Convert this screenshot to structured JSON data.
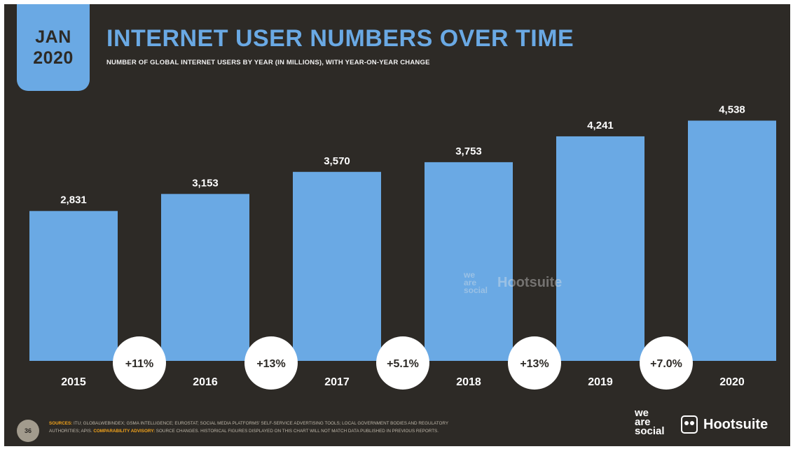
{
  "header": {
    "month": "JAN",
    "year": "2020",
    "title": "INTERNET USER NUMBERS OVER TIME",
    "subtitle": "NUMBER OF GLOBAL INTERNET USERS BY YEAR (IN MILLIONS), WITH YEAR-ON-YEAR CHANGE"
  },
  "chart_data": {
    "type": "bar",
    "categories": [
      "2015",
      "2016",
      "2017",
      "2018",
      "2019",
      "2020"
    ],
    "values": [
      2831,
      3153,
      3570,
      3753,
      4241,
      4538
    ],
    "value_labels": [
      "2,831",
      "3,153",
      "3,570",
      "3,753",
      "4,241",
      "4,538"
    ],
    "changes": [
      "+11%",
      "+13%",
      "+5.1%",
      "+13%",
      "+7.0%"
    ],
    "title": "INTERNET USER NUMBERS OVER TIME",
    "xlabel": "",
    "ylabel": "",
    "ylim": [
      0,
      5000
    ],
    "grid": false,
    "legend": "none",
    "colors": {
      "bar": "#6aa9e4",
      "background": "#2d2a26",
      "label": "#ffffff",
      "change_bubble": "#ffffff",
      "change_text": "#2d2a26"
    }
  },
  "watermark": {
    "brand_lines": [
      "we",
      "are",
      "social"
    ],
    "partner": "Hootsuite"
  },
  "footer": {
    "page_number": "36",
    "sources_label": "SOURCES:",
    "sources_text": "ITU; GLOBALWEBINDEX; GSMA INTELLIGENCE; EUROSTAT; SOCIAL MEDIA PLATFORMS' SELF-SERVICE ADVERTISING TOOLS; LOCAL GOVERNMENT BODIES AND REGULATORY",
    "sources_text_2": "AUTHORITIES; APIS.",
    "advisory_label": "COMPARABILITY ADVISORY:",
    "advisory_text": "SOURCE CHANGES. HISTORICAL FIGURES DISPLAYED ON THIS CHART WILL NOT MATCH DATA PUBLISHED IN PREVIOUS REPORTS.",
    "logo_lines": [
      "we",
      "are",
      "social"
    ],
    "partner_logo": "Hootsuite",
    "partner_icon": "owl-icon"
  }
}
